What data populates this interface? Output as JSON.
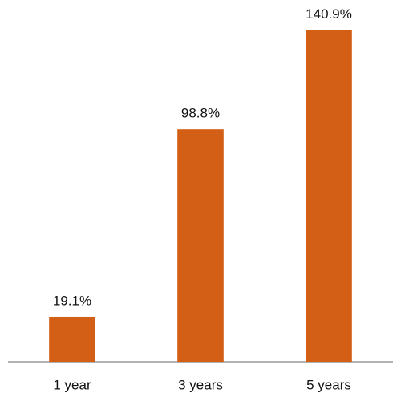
{
  "chart_data": {
    "type": "bar",
    "categories": [
      "1 year",
      "3 years",
      "5 years"
    ],
    "values": [
      19.1,
      98.8,
      140.9
    ],
    "value_labels": [
      "19.1%",
      "98.8%",
      "140.9%"
    ],
    "color": "#d35f17",
    "ylim": [
      0,
      150
    ]
  }
}
